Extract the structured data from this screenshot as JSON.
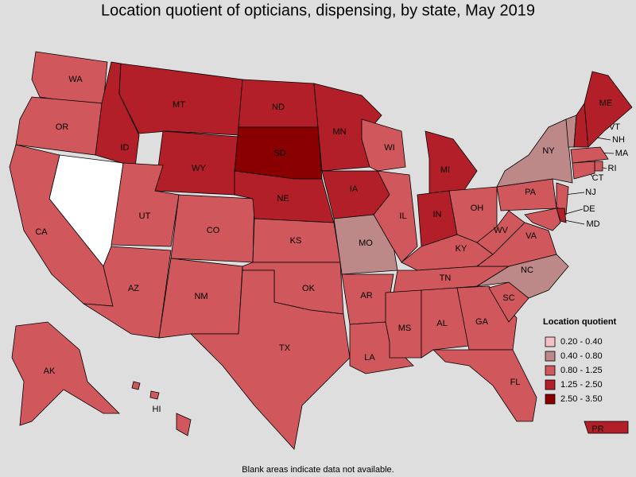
{
  "title": "Location quotient of opticians, dispensing, by state, May 2019",
  "footnote": "Blank areas indicate data not available.",
  "legend": {
    "title": "Location quotient",
    "items": [
      {
        "label": "0.20 - 0.40",
        "color": "#f4c2c6"
      },
      {
        "label": "0.40 - 0.80",
        "color": "#bc8888"
      },
      {
        "label": "0.80 - 1.25",
        "color": "#d0585c"
      },
      {
        "label": "1.25 - 2.50",
        "color": "#b31f28"
      },
      {
        "label": "2.50 - 3.50",
        "color": "#8a0000"
      }
    ]
  },
  "states": [
    {
      "label": "WA",
      "color": "#d0585c"
    },
    {
      "label": "OR",
      "color": "#d0585c"
    },
    {
      "label": "CA",
      "color": "#d0585c"
    },
    {
      "label": "ID",
      "color": "#b31f28"
    },
    {
      "label": "MT",
      "color": "#b31f28"
    },
    {
      "label": "WY",
      "color": "#b31f28"
    },
    {
      "label": "UT",
      "color": "#d0585c"
    },
    {
      "label": "CO",
      "color": "#d0585c"
    },
    {
      "label": "AZ",
      "color": "#d0585c"
    },
    {
      "label": "NM",
      "color": "#d0585c"
    },
    {
      "label": "ND",
      "color": "#b31f28"
    },
    {
      "label": "SD",
      "color": "#8a0000"
    },
    {
      "label": "NE",
      "color": "#b31f28"
    },
    {
      "label": "KS",
      "color": "#d0585c"
    },
    {
      "label": "OK",
      "color": "#d0585c"
    },
    {
      "label": "TX",
      "color": "#d0585c"
    },
    {
      "label": "MN",
      "color": "#b31f28"
    },
    {
      "label": "IA",
      "color": "#b31f28"
    },
    {
      "label": "MO",
      "color": "#bc8888"
    },
    {
      "label": "AR",
      "color": "#d0585c"
    },
    {
      "label": "LA",
      "color": "#d0585c"
    },
    {
      "label": "WI",
      "color": "#d0585c"
    },
    {
      "label": "IL",
      "color": "#d0585c"
    },
    {
      "label": "MI",
      "color": "#b31f28"
    },
    {
      "label": "IN",
      "color": "#b31f28"
    },
    {
      "label": "OH",
      "color": "#d0585c"
    },
    {
      "label": "KY",
      "color": "#d0585c"
    },
    {
      "label": "TN",
      "color": "#d0585c"
    },
    {
      "label": "MS",
      "color": "#d0585c"
    },
    {
      "label": "AL",
      "color": "#d0585c"
    },
    {
      "label": "GA",
      "color": "#d0585c"
    },
    {
      "label": "FL",
      "color": "#d0585c"
    },
    {
      "label": "SC",
      "color": "#d0585c"
    },
    {
      "label": "NC",
      "color": "#bc8888"
    },
    {
      "label": "VA",
      "color": "#d0585c"
    },
    {
      "label": "WV",
      "color": "#d0585c"
    },
    {
      "label": "PA",
      "color": "#d0585c"
    },
    {
      "label": "NY",
      "color": "#bc8888"
    },
    {
      "label": "VT",
      "color": "#bc8888"
    },
    {
      "label": "NH",
      "color": "#b31f28"
    },
    {
      "label": "ME",
      "color": "#b31f28"
    },
    {
      "label": "MA",
      "color": "#d0585c"
    },
    {
      "label": "RI",
      "color": "#d0585c"
    },
    {
      "label": "CT",
      "color": "#d0585c"
    },
    {
      "label": "NJ",
      "color": "#d0585c"
    },
    {
      "label": "DE",
      "color": "#b31f28"
    },
    {
      "label": "MD",
      "color": "#d0585c"
    },
    {
      "label": "AK",
      "color": "#d0585c"
    },
    {
      "label": "HI",
      "color": "#d0585c"
    },
    {
      "label": "PR",
      "color": "#b31f28"
    }
  ]
}
